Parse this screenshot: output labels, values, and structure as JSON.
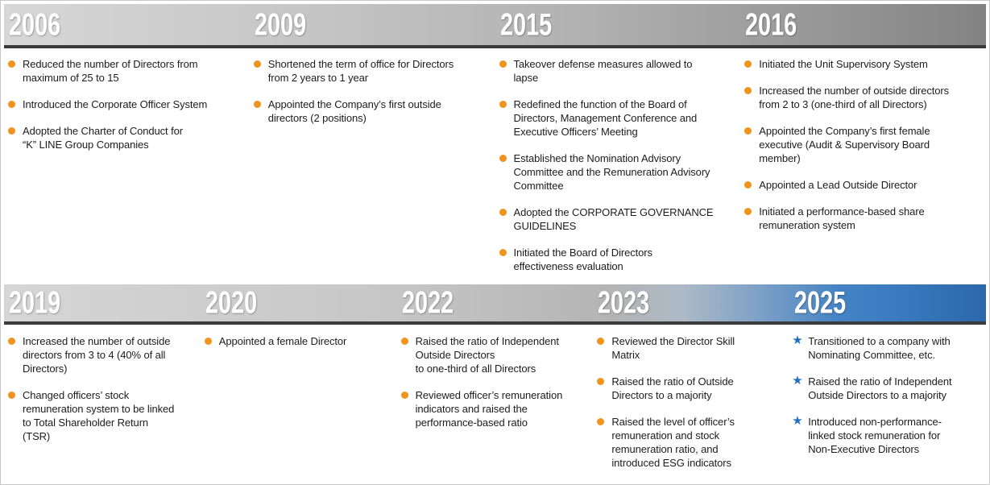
{
  "figure_name": "corporate-governance-timeline",
  "colors": {
    "bullet_orange": "#F0941E",
    "star_blue": "#1E6FBE",
    "band_gray_start": "#D7D7D7",
    "band_gray_end": "#838383",
    "band_blue": "#2E6FB3",
    "band_underline": "#3A3A3A",
    "year_text": "#FFFFFF",
    "body_text": "#1C1C1C"
  },
  "rows": [
    {
      "name": "timeline-row-1",
      "sections": [
        {
          "year": "2006",
          "marker": "dot",
          "items": [
            "Reduced the number of Directors from\nmaximum of 25 to 15",
            "Introduced the Corporate Officer System",
            "Adopted the Charter of Conduct for\n“K” LINE Group Companies"
          ]
        },
        {
          "year": "2009",
          "marker": "dot",
          "items": [
            "Shortened the term of office for Directors\nfrom 2 years to 1 year",
            "Appointed the Company’s first outside\ndirectors (2 positions)"
          ]
        },
        {
          "year": "2015",
          "marker": "dot",
          "items": [
            "Takeover defense measures allowed to\nlapse",
            "Redefined the function of the Board of\nDirectors, Management Conference and\nExecutive Officers’ Meeting",
            "Established the Nomination Advisory\nCommittee and the Remuneration Advisory\nCommittee",
            "Adopted the CORPORATE GOVERNANCE\nGUIDELINES",
            "Initiated the Board of Directors\neffectiveness evaluation"
          ]
        },
        {
          "year": "2016",
          "marker": "dot",
          "items": [
            "Initiated the Unit Supervisory System",
            "Increased the number of outside directors\nfrom 2 to 3 (one-third of all Directors)",
            "Appointed the Company’s first female\nexecutive (Audit & Supervisory Board\nmember)",
            "Appointed a Lead Outside Director",
            "Initiated a performance-based share\nremuneration system"
          ]
        }
      ]
    },
    {
      "name": "timeline-row-2",
      "sections": [
        {
          "year": "2019",
          "marker": "dot",
          "items": [
            "Increased the number of outside\ndirectors from 3 to 4 (40% of all\nDirectors)",
            "Changed officers’ stock\nremuneration system to be linked\nto Total Shareholder Return\n(TSR)"
          ]
        },
        {
          "year": "2020",
          "marker": "dot",
          "items": [
            "Appointed a female Director"
          ]
        },
        {
          "year": "2022",
          "marker": "dot",
          "items": [
            "Raised the ratio of Independent\nOutside Directors\nto one-third of all Directors",
            "Reviewed officer’s remuneration\nindicators and raised the\nperformance-based ratio"
          ]
        },
        {
          "year": "2023",
          "marker": "dot",
          "items": [
            "Reviewed the Director Skill\nMatrix",
            "Raised the ratio of Outside\nDirectors to a majority",
            "Raised the level of officer’s\nremuneration and stock\nremuneration ratio, and\nintroduced ESG indicators"
          ]
        },
        {
          "year": "2025",
          "marker": "star",
          "items": [
            "Transitioned to a company with\nNominating Committee, etc.",
            "Raised the ratio of Independent\nOutside Directors to a majority",
            "Introduced non-performance-\nlinked stock remuneration for\nNon-Executive Directors"
          ]
        }
      ]
    }
  ]
}
